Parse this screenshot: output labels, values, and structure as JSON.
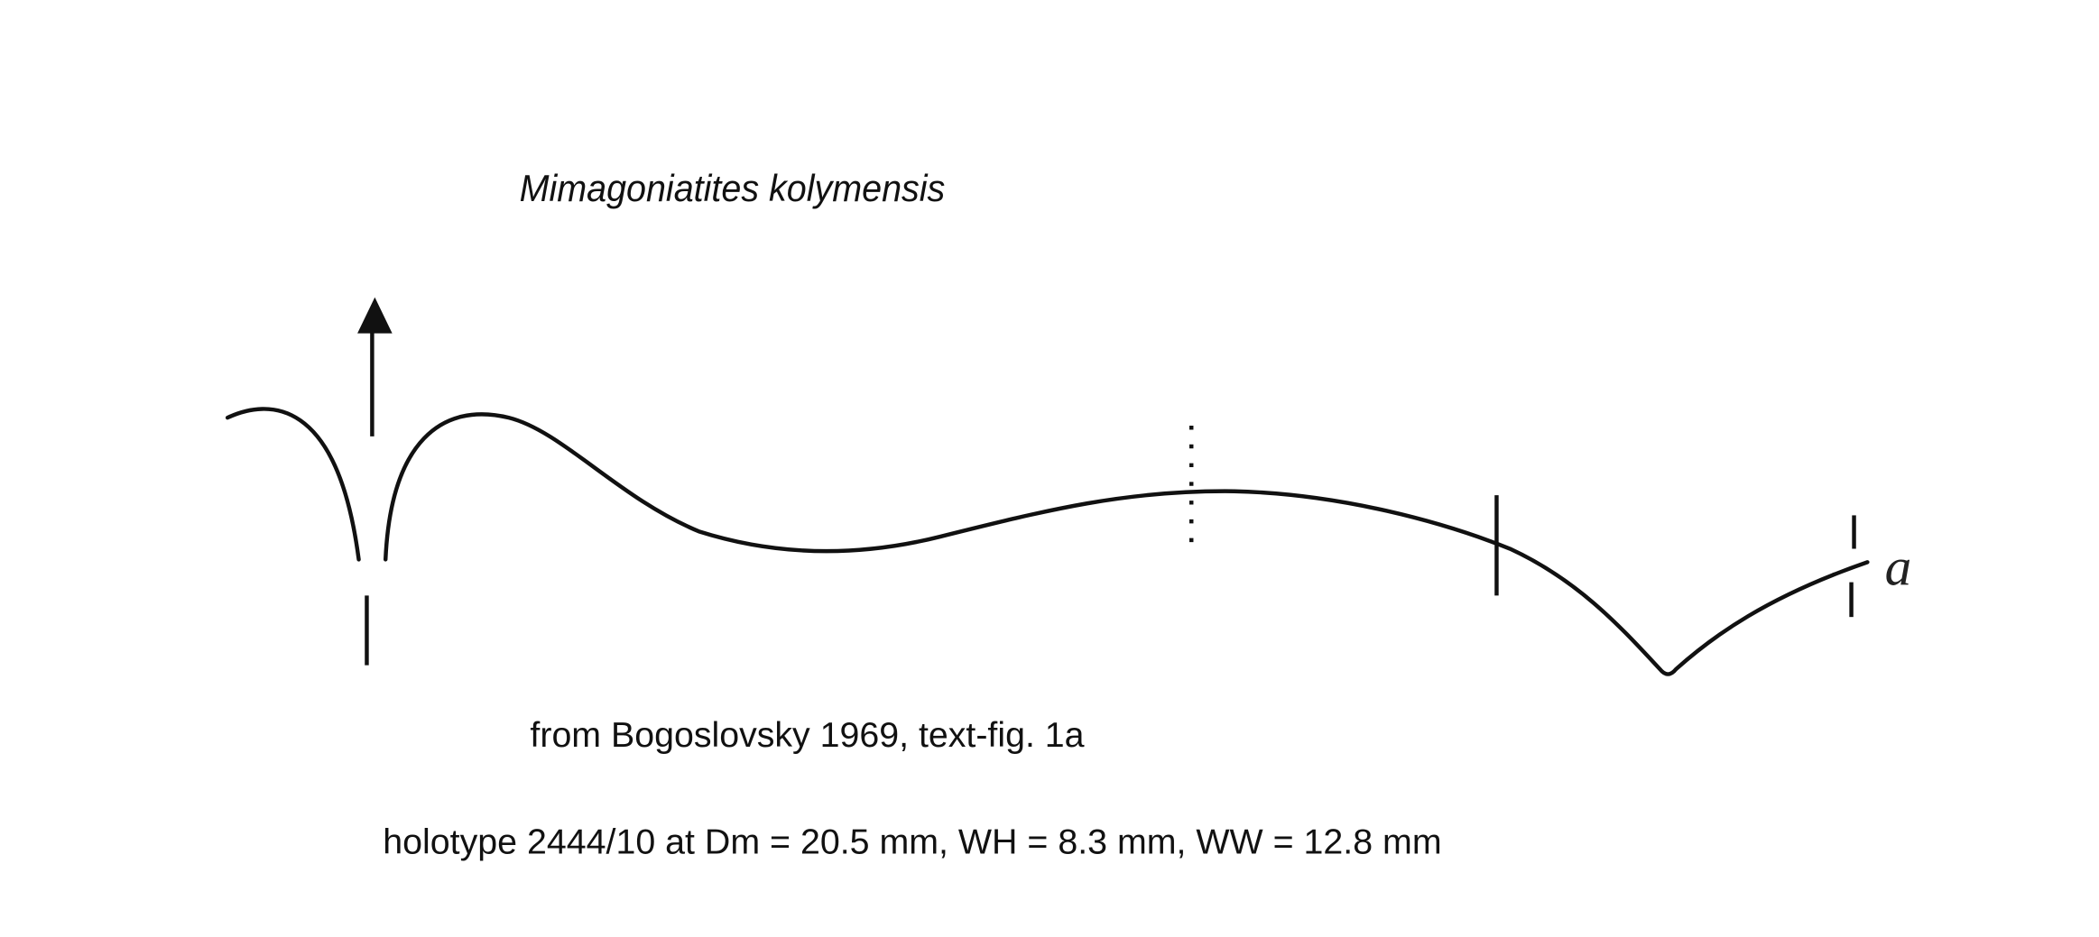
{
  "title": "Mimagoniatites kolymensis",
  "suture_label": "a",
  "source": "from Bogoslovsky 1969, text-fig. 1a",
  "specimen": "holotype 2444/10 at Dm = 20.5 mm, WH = 8.3 mm, WW = 12.8 mm"
}
